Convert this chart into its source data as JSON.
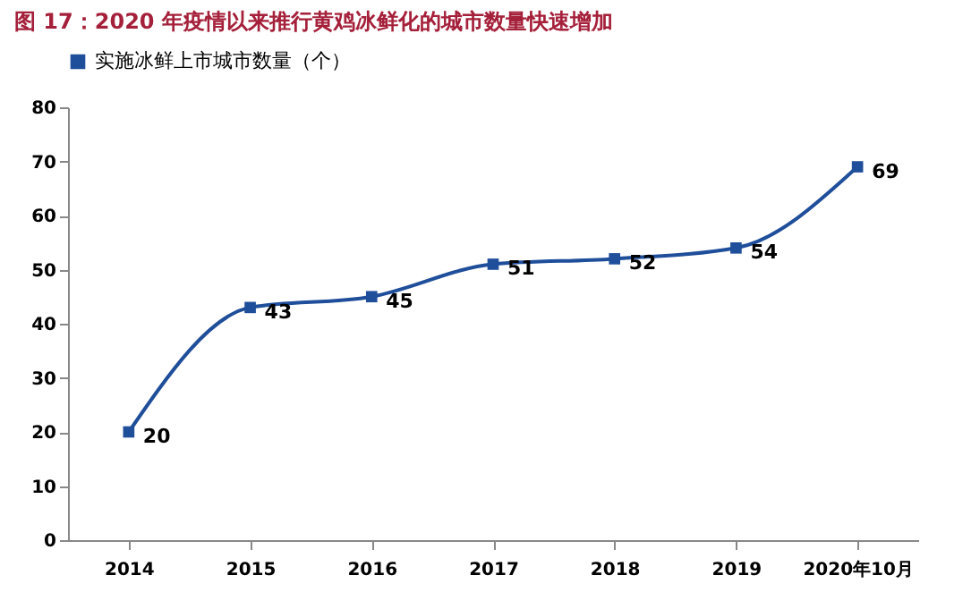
{
  "chart_data": {
    "type": "line",
    "title": "图 17：2020 年疫情以来推行黄鸡冰鲜化的城市数量快速增加",
    "categories": [
      "2014",
      "2015",
      "2016",
      "2017",
      "2018",
      "2019",
      "2020年10月"
    ],
    "series": [
      {
        "name": "实施冰鲜上市城市数量（个）",
        "color": "#1f4e9a",
        "values": [
          20,
          43,
          45,
          51,
          52,
          54,
          69
        ]
      }
    ],
    "ylim": [
      0,
      80
    ],
    "yticks": [
      0,
      10,
      20,
      30,
      40,
      50,
      60,
      70,
      80
    ],
    "data_labels": true,
    "legend": "top",
    "marker": "square",
    "line_style": "solid"
  }
}
